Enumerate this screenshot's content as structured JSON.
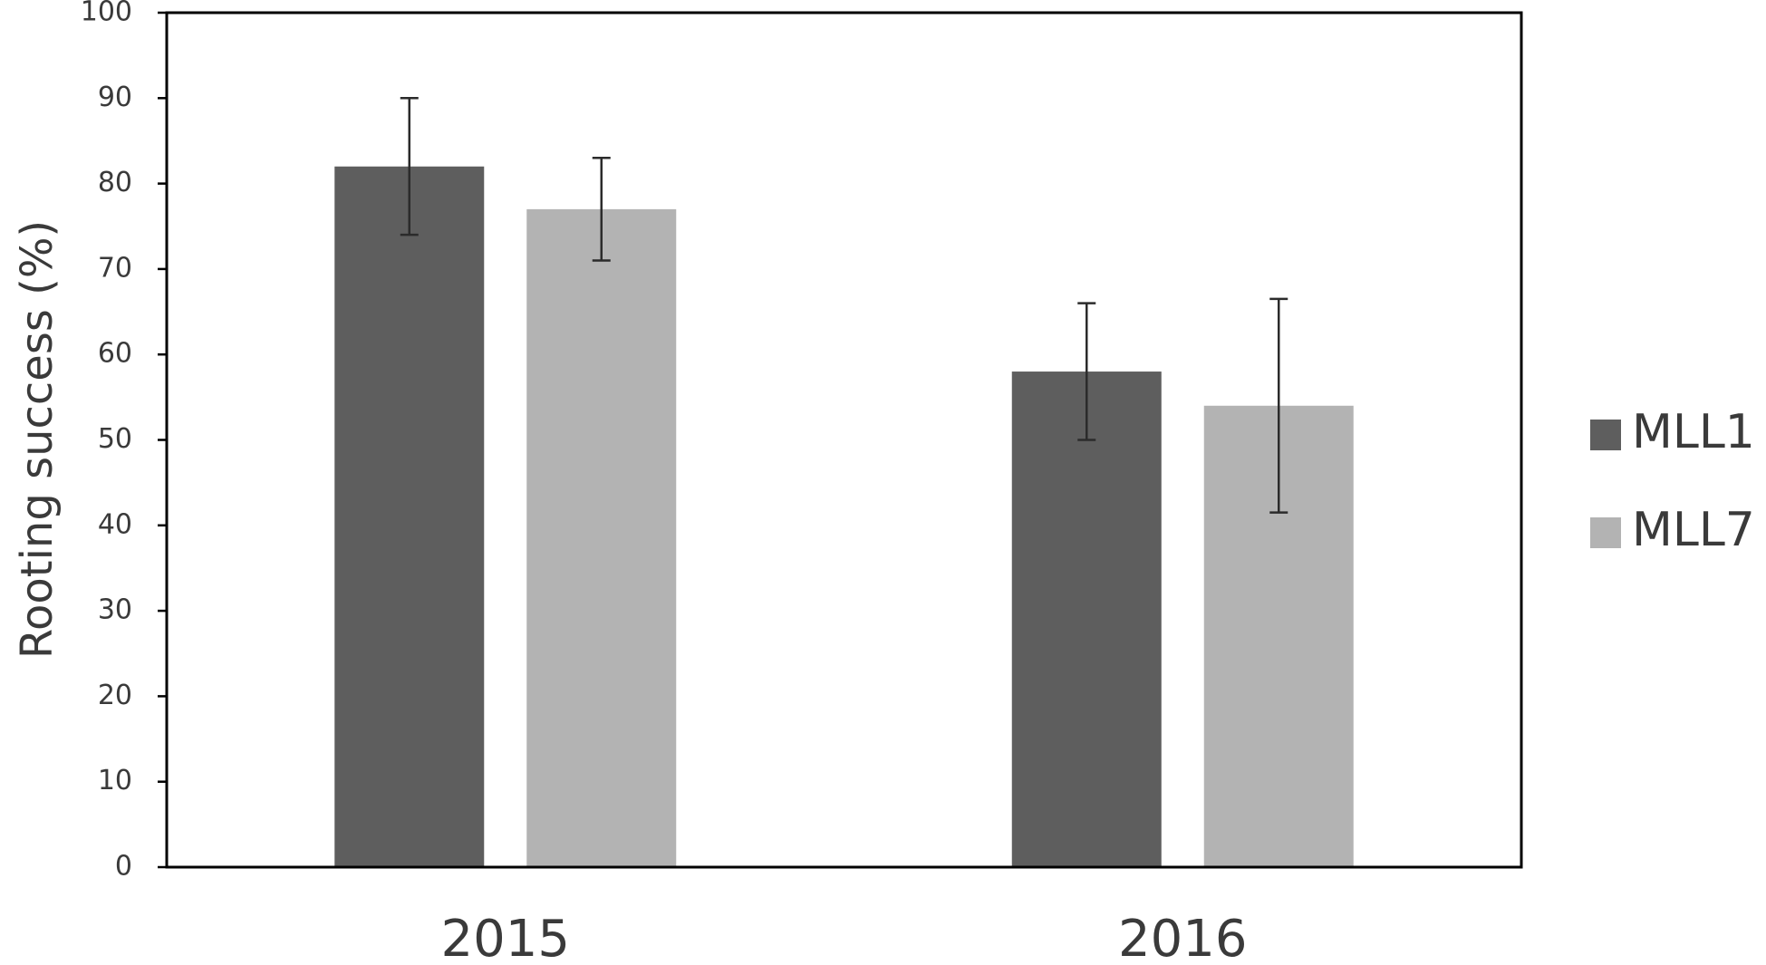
{
  "chart_data": {
    "type": "bar",
    "categories": [
      "2015",
      "2016"
    ],
    "series": [
      {
        "name": "MLL1",
        "color": "#5e5e5e",
        "values": [
          82,
          58
        ],
        "error": [
          8,
          8
        ]
      },
      {
        "name": "MLL7",
        "color": "#b3b3b3",
        "values": [
          77,
          54
        ],
        "error": [
          6,
          12.5
        ]
      }
    ],
    "title": "",
    "xlabel": "",
    "ylabel": "Rooting success (%)",
    "ylim": [
      0,
      100
    ],
    "yticks": [
      0,
      10,
      20,
      30,
      40,
      50,
      60,
      70,
      80,
      90,
      100
    ],
    "grid": false,
    "legend": "right"
  }
}
